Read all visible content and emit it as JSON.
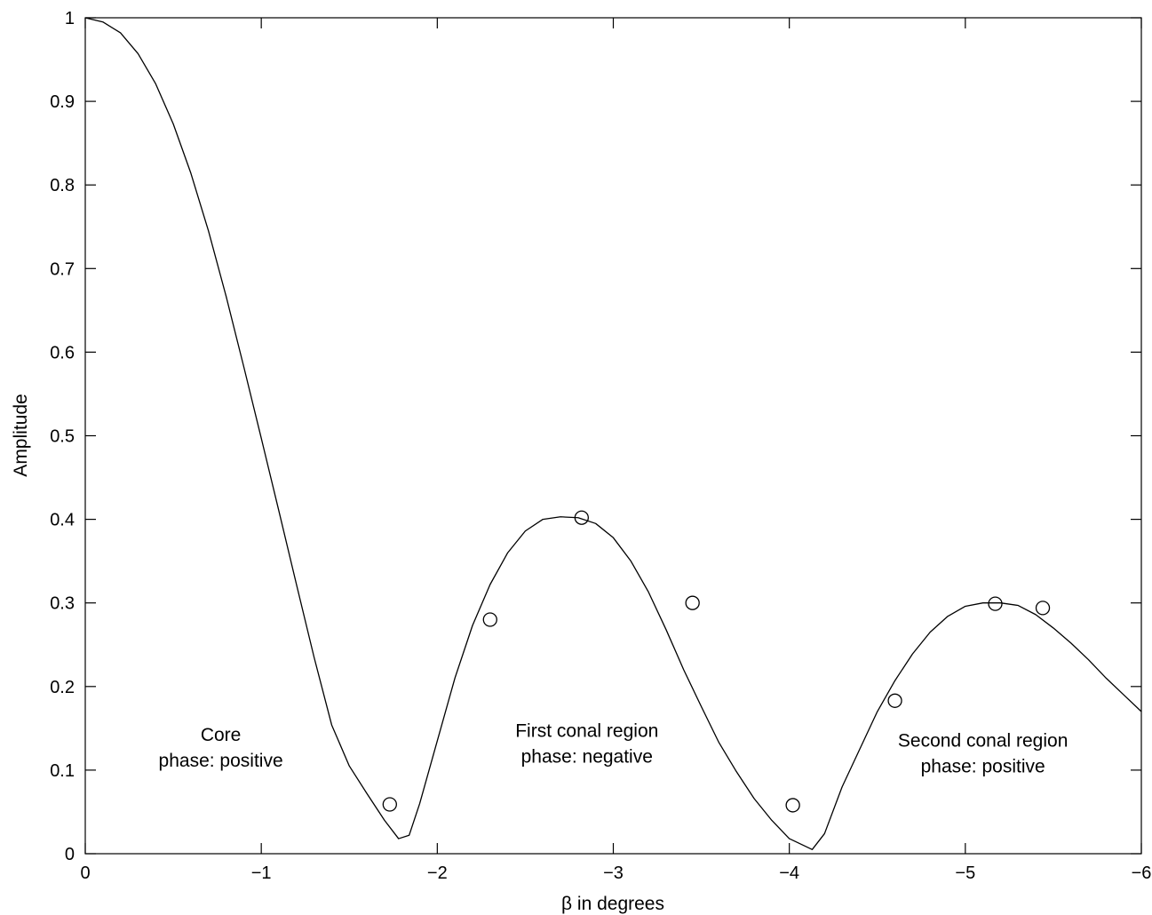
{
  "chart_data": {
    "type": "line",
    "xlabel": "β in degrees",
    "ylabel": "Amplitude",
    "xlim": [
      0,
      -6
    ],
    "ylim": [
      0,
      1
    ],
    "x_reversed": true,
    "grid": false,
    "xticks": [
      0,
      -1,
      -2,
      -3,
      -4,
      -5,
      -6
    ],
    "xtick_labels": [
      "0",
      "−1",
      "−2",
      "−3",
      "−4",
      "−5",
      "−6"
    ],
    "yticks": [
      0,
      0.1,
      0.2,
      0.3,
      0.4,
      0.5,
      0.6,
      0.7,
      0.8,
      0.9,
      1
    ],
    "ytick_labels": [
      "0",
      "0.1",
      "0.2",
      "0.3",
      "0.4",
      "0.5",
      "0.6",
      "0.7",
      "0.8",
      "0.9",
      "1"
    ],
    "series": [
      {
        "style": "line",
        "color": "#000000",
        "x": [
          0,
          -0.1,
          -0.2,
          -0.3,
          -0.4,
          -0.5,
          -0.6,
          -0.7,
          -0.8,
          -0.9,
          -1.0,
          -1.1,
          -1.2,
          -1.3,
          -1.4,
          -1.5,
          -1.6,
          -1.7,
          -1.78,
          -1.84,
          -1.9,
          -2.0,
          -2.1,
          -2.2,
          -2.3,
          -2.4,
          -2.5,
          -2.6,
          -2.7,
          -2.8,
          -2.9,
          -3.0,
          -3.1,
          -3.2,
          -3.3,
          -3.4,
          -3.5,
          -3.6,
          -3.7,
          -3.8,
          -3.9,
          -4.0,
          -4.08,
          -4.13,
          -4.2,
          -4.3,
          -4.4,
          -4.5,
          -4.6,
          -4.7,
          -4.8,
          -4.9,
          -5.0,
          -5.1,
          -5.2,
          -5.3,
          -5.4,
          -5.5,
          -5.6,
          -5.7,
          -5.8,
          -5.9,
          -6.0
        ],
        "y": [
          1.0,
          0.995,
          0.982,
          0.957,
          0.921,
          0.873,
          0.814,
          0.745,
          0.667,
          0.583,
          0.497,
          0.41,
          0.322,
          0.235,
          0.154,
          0.105,
          0.072,
          0.04,
          0.018,
          0.022,
          0.06,
          0.135,
          0.21,
          0.273,
          0.322,
          0.36,
          0.386,
          0.4,
          0.403,
          0.402,
          0.395,
          0.378,
          0.35,
          0.313,
          0.268,
          0.22,
          0.176,
          0.133,
          0.098,
          0.066,
          0.04,
          0.018,
          0.01,
          0.005,
          0.024,
          0.08,
          0.125,
          0.17,
          0.207,
          0.239,
          0.265,
          0.284,
          0.296,
          0.3,
          0.3,
          0.297,
          0.286,
          0.27,
          0.252,
          0.232,
          0.21,
          0.19,
          0.17
        ]
      },
      {
        "style": "markers",
        "marker": "circle",
        "color": "#000000",
        "x": [
          -1.73,
          -2.3,
          -2.82,
          -3.45,
          -4.02,
          -4.6,
          -5.17,
          -5.44
        ],
        "y": [
          0.059,
          0.28,
          0.402,
          0.3,
          0.058,
          0.183,
          0.299,
          0.294
        ]
      }
    ],
    "annotations": [
      {
        "lines": [
          "Core",
          "phase: positive"
        ],
        "x": -0.77,
        "y": 0.135
      },
      {
        "lines": [
          "First conal region",
          "phase: negative"
        ],
        "x": -2.85,
        "y": 0.14
      },
      {
        "lines": [
          "Second conal region",
          "phase: positive"
        ],
        "x": -5.1,
        "y": 0.128
      }
    ]
  }
}
